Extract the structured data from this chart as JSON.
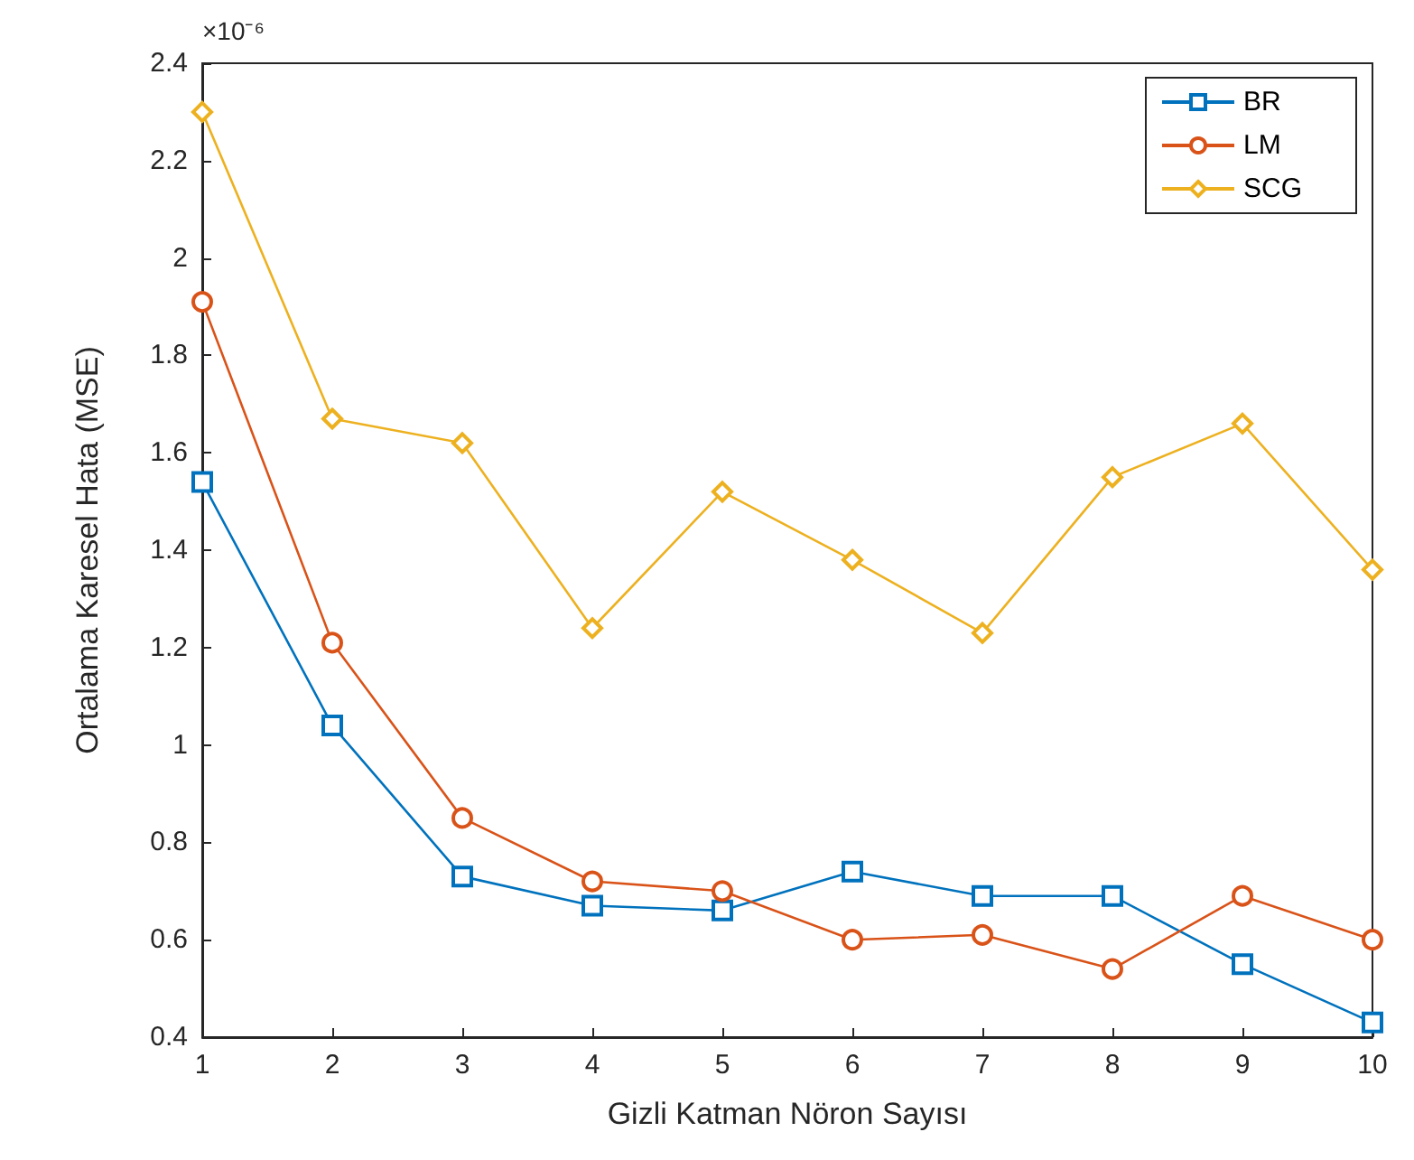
{
  "chart_data": {
    "type": "line",
    "xlabel": "Gizli Katman Nöron Sayısı",
    "ylabel": "Ortalama Karesel Hata (MSE)",
    "annotations": [
      "×10⁻⁶"
    ],
    "x": [
      1,
      2,
      3,
      4,
      5,
      6,
      7,
      8,
      9,
      10
    ],
    "series": [
      {
        "name": "BR",
        "color": "#0072bd",
        "marker": "square",
        "values": [
          1.54,
          1.04,
          0.73,
          0.67,
          0.66,
          0.74,
          0.69,
          0.69,
          0.55,
          0.43
        ]
      },
      {
        "name": "LM",
        "color": "#d95319",
        "marker": "circle",
        "values": [
          1.91,
          1.21,
          0.85,
          0.72,
          0.7,
          0.6,
          0.61,
          0.54,
          0.69,
          0.6
        ]
      },
      {
        "name": "SCG",
        "color": "#edb120",
        "marker": "diamond",
        "values": [
          2.3,
          1.67,
          1.62,
          1.24,
          1.52,
          1.38,
          1.23,
          1.55,
          1.66,
          1.36
        ]
      }
    ],
    "xlim": [
      1,
      10
    ],
    "xticks": [
      1,
      2,
      3,
      4,
      5,
      6,
      7,
      8,
      9,
      10
    ],
    "ylim": [
      0.4,
      2.4
    ],
    "yticks": [
      0.4,
      0.6,
      0.8,
      1,
      1.2,
      1.4,
      1.6,
      1.8,
      2,
      2.2,
      2.4
    ],
    "grid": false,
    "legend": "top right",
    "line_style": "solid"
  }
}
